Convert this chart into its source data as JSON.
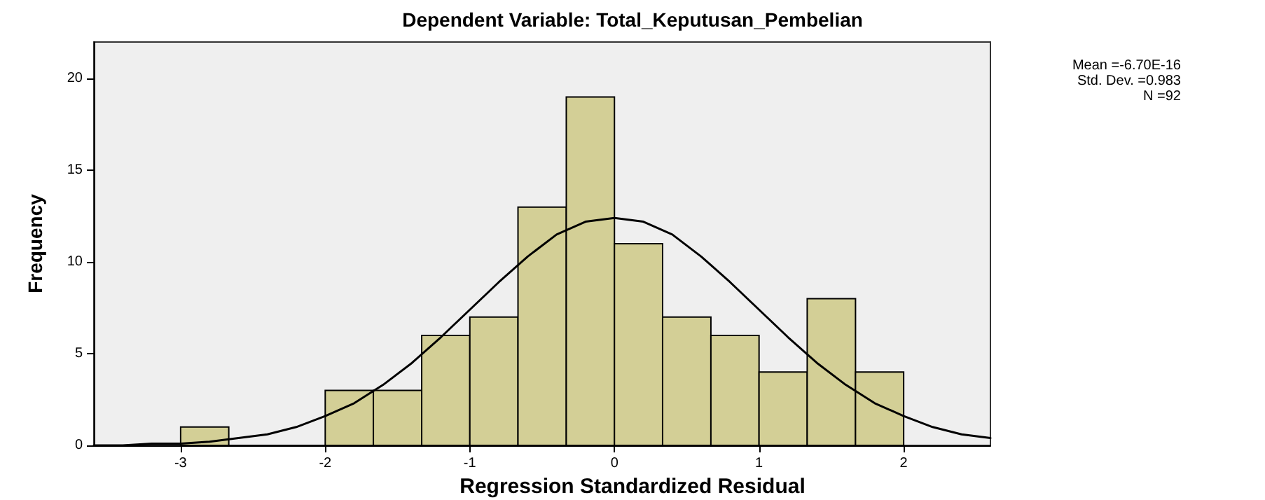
{
  "chart_data": {
    "type": "histogram",
    "title": "Dependent Variable: Total_Keputusan_Pembelian",
    "xlabel": "Regression Standardized Residual",
    "ylabel": "Frequency",
    "annotations": [
      "Mean =-6.70E-16",
      "Std. Dev. =0.983",
      "N =92"
    ],
    "series": [
      {
        "color": "#d3cf96",
        "bins": [
          -3,
          -2.667,
          -2.333,
          -2,
          -1.667,
          -1.333,
          -1,
          -0.667,
          -0.333,
          0,
          0.333,
          0.667,
          1,
          1.333,
          1.667,
          2
        ],
        "values": [
          1,
          0,
          0,
          3,
          3,
          6,
          7,
          13,
          19,
          11,
          7,
          6,
          4,
          8,
          4
        ]
      },
      {
        "type": "line",
        "color": "#000000",
        "x": [
          -3.6,
          -3.4,
          -3.2,
          -3.0,
          -2.8,
          -2.6,
          -2.4,
          -2.2,
          -2.0,
          -1.8,
          -1.6,
          -1.4,
          -1.2,
          -1.0,
          -0.8,
          -0.6,
          -0.4,
          -0.2,
          0,
          0.2,
          0.4,
          0.6,
          0.8,
          1.0,
          1.2,
          1.4,
          1.6,
          1.8,
          2.0,
          2.2,
          2.4,
          2.6
        ],
        "values": [
          0.0,
          0.0,
          0.1,
          0.1,
          0.2,
          0.4,
          0.6,
          1.0,
          1.6,
          2.3,
          3.3,
          4.5,
          5.9,
          7.4,
          8.9,
          10.3,
          11.5,
          12.2,
          12.4,
          12.2,
          11.5,
          10.3,
          8.9,
          7.4,
          5.9,
          4.5,
          3.3,
          2.3,
          1.6,
          1.0,
          0.6,
          0.4
        ]
      }
    ],
    "xlim": [
      -3.6,
      2.6
    ],
    "xticks": [
      -3,
      -2,
      -1,
      0,
      1,
      2
    ],
    "ylim": [
      0,
      22
    ],
    "yticks": [
      0,
      5,
      10,
      15,
      20
    ],
    "grid": false,
    "marker": "none",
    "line_style": "solid"
  }
}
